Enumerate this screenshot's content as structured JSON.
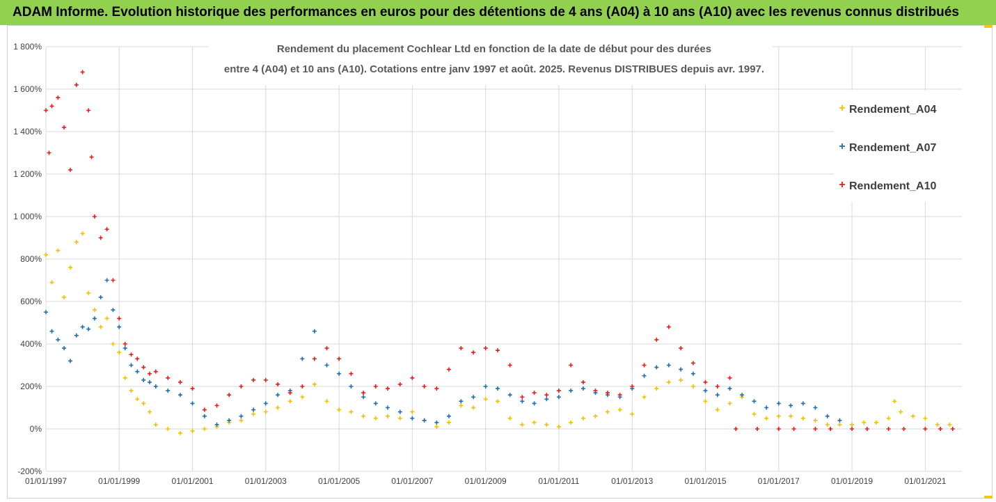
{
  "banner": {
    "title": "ADAM Informe. Evolution historique des performances en euros pour des détentions de 4 ans (A04) à 10 ans (A10) avec les revenus connus distribués",
    "color": "#92d050"
  },
  "chart_data": {
    "type": "scatter",
    "title_line1": "Rendement du placement Cochlear Ltd en fonction de la date de début pour des durées",
    "title_line2": "entre 4 (A04) et 10 ans (A10). Cotations entre janv 1997 et août. 2025. Revenus DISTRIBUES depuis avr. 1997.",
    "xlabel": "",
    "ylabel": "",
    "x_ticks": [
      "01/01/1997",
      "01/01/1999",
      "01/01/2001",
      "01/01/2003",
      "01/01/2005",
      "01/01/2007",
      "01/01/2009",
      "01/01/2011",
      "01/01/2013",
      "01/01/2015",
      "01/01/2017",
      "01/01/2019",
      "01/01/2021"
    ],
    "y_ticks": [
      "1 800%",
      "1 600%",
      "1 400%",
      "1 200%",
      "1 000%",
      "800%",
      "600%",
      "400%",
      "200%",
      "0%",
      "-200%"
    ],
    "xlim": [
      "1997-01-01",
      "2022-01-01"
    ],
    "ylim": [
      -200,
      1800
    ],
    "grid": true,
    "legend_position": "right",
    "series": [
      {
        "name": "Rendement_A04",
        "color": "#f5c000",
        "points": [
          [
            "1997-01",
            820
          ],
          [
            "1997-03",
            690
          ],
          [
            "1997-05",
            840
          ],
          [
            "1997-07",
            620
          ],
          [
            "1997-09",
            760
          ],
          [
            "1997-11",
            880
          ],
          [
            "1998-01",
            920
          ],
          [
            "1998-03",
            640
          ],
          [
            "1998-05",
            560
          ],
          [
            "1998-07",
            480
          ],
          [
            "1998-09",
            520
          ],
          [
            "1998-11",
            400
          ],
          [
            "1999-01",
            360
          ],
          [
            "1999-03",
            240
          ],
          [
            "1999-05",
            180
          ],
          [
            "1999-07",
            140
          ],
          [
            "1999-09",
            120
          ],
          [
            "1999-11",
            80
          ],
          [
            "2000-01",
            20
          ],
          [
            "2000-05",
            0
          ],
          [
            "2000-09",
            -20
          ],
          [
            "2001-01",
            -10
          ],
          [
            "2001-05",
            0
          ],
          [
            "2001-09",
            10
          ],
          [
            "2002-01",
            30
          ],
          [
            "2002-05",
            40
          ],
          [
            "2002-09",
            70
          ],
          [
            "2003-01",
            80
          ],
          [
            "2003-05",
            100
          ],
          [
            "2003-09",
            130
          ],
          [
            "2004-01",
            150
          ],
          [
            "2004-05",
            210
          ],
          [
            "2004-09",
            130
          ],
          [
            "2005-01",
            90
          ],
          [
            "2005-05",
            80
          ],
          [
            "2005-09",
            60
          ],
          [
            "2006-01",
            50
          ],
          [
            "2006-05",
            60
          ],
          [
            "2006-09",
            50
          ],
          [
            "2007-01",
            80
          ],
          [
            "2007-05",
            40
          ],
          [
            "2007-09",
            10
          ],
          [
            "2008-01",
            30
          ],
          [
            "2008-05",
            110
          ],
          [
            "2008-09",
            100
          ],
          [
            "2009-01",
            140
          ],
          [
            "2009-05",
            130
          ],
          [
            "2009-09",
            50
          ],
          [
            "2010-01",
            20
          ],
          [
            "2010-05",
            30
          ],
          [
            "2010-09",
            20
          ],
          [
            "2011-01",
            10
          ],
          [
            "2011-05",
            30
          ],
          [
            "2011-09",
            50
          ],
          [
            "2012-01",
            60
          ],
          [
            "2012-05",
            80
          ],
          [
            "2012-09",
            90
          ],
          [
            "2013-01",
            70
          ],
          [
            "2013-05",
            150
          ],
          [
            "2013-09",
            190
          ],
          [
            "2014-01",
            220
          ],
          [
            "2014-05",
            230
          ],
          [
            "2014-09",
            200
          ],
          [
            "2015-01",
            130
          ],
          [
            "2015-05",
            90
          ],
          [
            "2015-09",
            120
          ],
          [
            "2016-01",
            150
          ],
          [
            "2016-05",
            70
          ],
          [
            "2016-09",
            50
          ],
          [
            "2017-01",
            60
          ],
          [
            "2017-05",
            60
          ],
          [
            "2017-09",
            50
          ],
          [
            "2018-01",
            40
          ],
          [
            "2018-05",
            20
          ],
          [
            "2018-09",
            20
          ],
          [
            "2019-01",
            20
          ],
          [
            "2019-05",
            30
          ],
          [
            "2019-09",
            30
          ],
          [
            "2020-01",
            50
          ],
          [
            "2020-03",
            130
          ],
          [
            "2020-05",
            80
          ],
          [
            "2020-09",
            60
          ],
          [
            "2021-01",
            50
          ],
          [
            "2021-05",
            20
          ],
          [
            "2021-09",
            20
          ]
        ]
      },
      {
        "name": "Rendement_A07",
        "color": "#1f6fb5",
        "points": [
          [
            "1997-01",
            550
          ],
          [
            "1997-03",
            460
          ],
          [
            "1997-05",
            420
          ],
          [
            "1997-07",
            380
          ],
          [
            "1997-09",
            320
          ],
          [
            "1997-11",
            440
          ],
          [
            "1998-01",
            480
          ],
          [
            "1998-03",
            470
          ],
          [
            "1998-05",
            520
          ],
          [
            "1998-07",
            620
          ],
          [
            "1998-09",
            700
          ],
          [
            "1998-11",
            560
          ],
          [
            "1999-01",
            480
          ],
          [
            "1999-03",
            380
          ],
          [
            "1999-05",
            300
          ],
          [
            "1999-07",
            270
          ],
          [
            "1999-09",
            230
          ],
          [
            "1999-11",
            220
          ],
          [
            "2000-01",
            200
          ],
          [
            "2000-05",
            180
          ],
          [
            "2000-09",
            160
          ],
          [
            "2001-01",
            120
          ],
          [
            "2001-05",
            60
          ],
          [
            "2001-09",
            20
          ],
          [
            "2002-01",
            40
          ],
          [
            "2002-05",
            60
          ],
          [
            "2002-09",
            90
          ],
          [
            "2003-01",
            120
          ],
          [
            "2003-05",
            160
          ],
          [
            "2003-09",
            180
          ],
          [
            "2004-01",
            330
          ],
          [
            "2004-05",
            460
          ],
          [
            "2004-09",
            300
          ],
          [
            "2005-01",
            260
          ],
          [
            "2005-05",
            200
          ],
          [
            "2005-09",
            150
          ],
          [
            "2006-01",
            120
          ],
          [
            "2006-05",
            100
          ],
          [
            "2006-09",
            80
          ],
          [
            "2007-01",
            50
          ],
          [
            "2007-05",
            40
          ],
          [
            "2007-09",
            30
          ],
          [
            "2008-01",
            60
          ],
          [
            "2008-05",
            130
          ],
          [
            "2008-09",
            150
          ],
          [
            "2009-01",
            200
          ],
          [
            "2009-05",
            190
          ],
          [
            "2009-09",
            160
          ],
          [
            "2010-01",
            130
          ],
          [
            "2010-05",
            120
          ],
          [
            "2010-09",
            140
          ],
          [
            "2011-01",
            150
          ],
          [
            "2011-05",
            180
          ],
          [
            "2011-09",
            190
          ],
          [
            "2012-01",
            170
          ],
          [
            "2012-05",
            160
          ],
          [
            "2012-09",
            150
          ],
          [
            "2013-01",
            190
          ],
          [
            "2013-05",
            250
          ],
          [
            "2013-09",
            290
          ],
          [
            "2014-01",
            300
          ],
          [
            "2014-05",
            280
          ],
          [
            "2014-09",
            260
          ],
          [
            "2015-01",
            180
          ],
          [
            "2015-05",
            160
          ],
          [
            "2015-09",
            190
          ],
          [
            "2016-01",
            160
          ],
          [
            "2016-05",
            130
          ],
          [
            "2016-09",
            100
          ],
          [
            "2017-01",
            120
          ],
          [
            "2017-05",
            110
          ],
          [
            "2017-09",
            120
          ],
          [
            "2018-01",
            100
          ],
          [
            "2018-05",
            60
          ],
          [
            "2018-09",
            40
          ]
        ]
      },
      {
        "name": "Rendement_A10",
        "color": "#e81c1c",
        "points": [
          [
            "1997-01",
            1500
          ],
          [
            "1997-02",
            1300
          ],
          [
            "1997-03",
            1520
          ],
          [
            "1997-05",
            1560
          ],
          [
            "1997-07",
            1420
          ],
          [
            "1997-09",
            1220
          ],
          [
            "1997-11",
            1620
          ],
          [
            "1998-01",
            1680
          ],
          [
            "1998-03",
            1500
          ],
          [
            "1998-04",
            1280
          ],
          [
            "1998-05",
            1000
          ],
          [
            "1998-07",
            900
          ],
          [
            "1998-09",
            940
          ],
          [
            "1998-11",
            700
          ],
          [
            "1999-01",
            520
          ],
          [
            "1999-03",
            400
          ],
          [
            "1999-05",
            350
          ],
          [
            "1999-07",
            330
          ],
          [
            "1999-09",
            290
          ],
          [
            "1999-11",
            260
          ],
          [
            "2000-01",
            270
          ],
          [
            "2000-05",
            240
          ],
          [
            "2000-09",
            220
          ],
          [
            "2001-01",
            190
          ],
          [
            "2001-05",
            90
          ],
          [
            "2001-09",
            110
          ],
          [
            "2002-01",
            160
          ],
          [
            "2002-05",
            200
          ],
          [
            "2002-09",
            230
          ],
          [
            "2003-01",
            230
          ],
          [
            "2003-05",
            210
          ],
          [
            "2003-09",
            170
          ],
          [
            "2004-01",
            200
          ],
          [
            "2004-05",
            330
          ],
          [
            "2004-09",
            380
          ],
          [
            "2005-01",
            330
          ],
          [
            "2005-05",
            260
          ],
          [
            "2005-09",
            170
          ],
          [
            "2006-01",
            200
          ],
          [
            "2006-05",
            190
          ],
          [
            "2006-09",
            210
          ],
          [
            "2007-01",
            240
          ],
          [
            "2007-05",
            200
          ],
          [
            "2007-09",
            190
          ],
          [
            "2008-01",
            280
          ],
          [
            "2008-05",
            380
          ],
          [
            "2008-09",
            360
          ],
          [
            "2009-01",
            380
          ],
          [
            "2009-05",
            370
          ],
          [
            "2009-09",
            300
          ],
          [
            "2010-01",
            150
          ],
          [
            "2010-05",
            170
          ],
          [
            "2010-09",
            160
          ],
          [
            "2011-01",
            180
          ],
          [
            "2011-05",
            300
          ],
          [
            "2011-09",
            220
          ],
          [
            "2012-01",
            180
          ],
          [
            "2012-05",
            170
          ],
          [
            "2012-09",
            160
          ],
          [
            "2013-01",
            200
          ],
          [
            "2013-05",
            300
          ],
          [
            "2013-09",
            420
          ],
          [
            "2014-01",
            480
          ],
          [
            "2014-05",
            380
          ],
          [
            "2014-09",
            310
          ],
          [
            "2015-01",
            220
          ],
          [
            "2015-05",
            200
          ],
          [
            "2015-09",
            240
          ],
          [
            "2015-11",
            0
          ],
          [
            "2016-06",
            0
          ],
          [
            "2017-01",
            0
          ],
          [
            "2017-06",
            0
          ],
          [
            "2018-01",
            0
          ],
          [
            "2018-06",
            0
          ],
          [
            "2019-01",
            0
          ],
          [
            "2019-06",
            0
          ],
          [
            "2020-01",
            0
          ],
          [
            "2020-06",
            0
          ],
          [
            "2021-01",
            0
          ],
          [
            "2021-06",
            0
          ],
          [
            "2021-10",
            0
          ]
        ]
      }
    ]
  }
}
